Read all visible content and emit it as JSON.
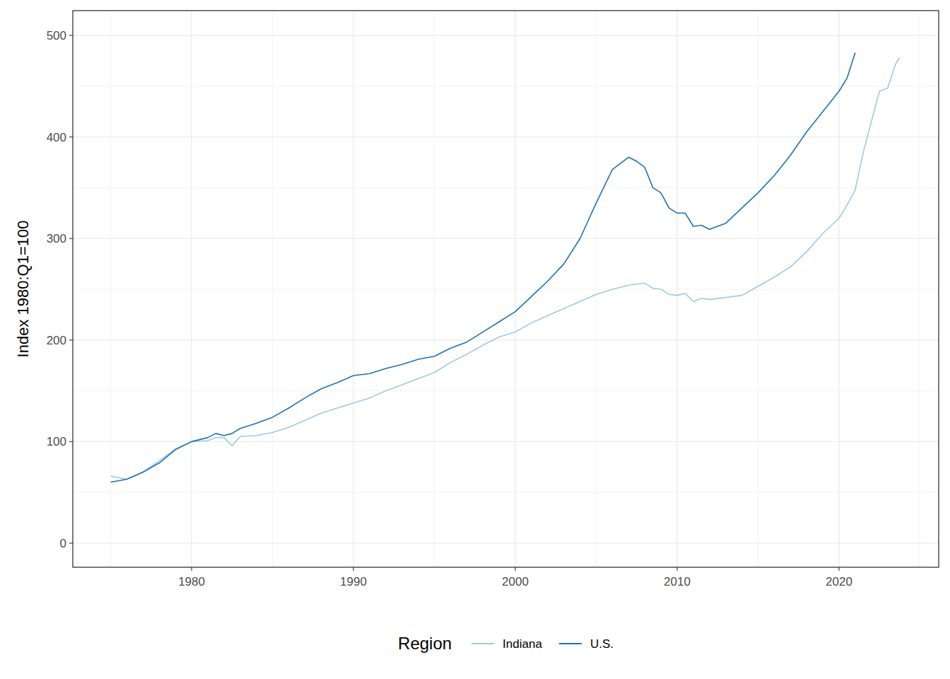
{
  "chart_data": {
    "type": "line",
    "y_label": "Index 1980:Q1=100",
    "legend_title": "Region",
    "legend": "bottom",
    "grid": true,
    "xlim": [
      1972.66,
      2026.16
    ],
    "ylim": [
      -23.7,
      524.4
    ],
    "xticks": [
      1980,
      1990,
      2000,
      2010,
      2020
    ],
    "yticks": [
      0,
      100,
      200,
      300,
      400,
      500
    ],
    "x": [
      1975,
      1976,
      1977,
      1978,
      1979,
      1980,
      1981,
      1981.5,
      1982,
      1982.5,
      1983,
      1984,
      1985,
      1986,
      1987,
      1988,
      1989,
      1990,
      1991,
      1992,
      1993,
      1994,
      1995,
      1996,
      1997,
      1998,
      1999,
      2000,
      2001,
      2002,
      2003,
      2004,
      2005,
      2006,
      2007,
      2007.5,
      2008,
      2008.5,
      2009,
      2009.5,
      2010,
      2010.5,
      2011,
      2011.5,
      2012,
      2013,
      2014,
      2015,
      2016,
      2017,
      2018,
      2019,
      2020,
      2020.5,
      2021,
      2021.5,
      2022,
      2022.5,
      2023,
      2023.5,
      2023.75
    ],
    "series": [
      {
        "name": "Indiana",
        "color": "#9ecae1",
        "values": [
          66,
          63,
          70,
          81,
          93,
          100,
          101,
          104,
          104,
          96,
          105,
          106,
          109,
          114,
          121,
          128,
          133,
          138,
          143,
          150,
          156,
          162,
          168,
          178,
          186,
          195,
          203,
          208,
          217,
          224,
          231,
          238,
          245,
          250,
          254,
          255,
          256,
          251,
          250,
          245,
          244,
          246,
          238,
          241,
          240,
          242,
          244,
          253,
          262,
          272,
          287,
          305,
          320,
          333,
          348,
          385,
          415,
          445,
          448,
          472,
          478
        ]
      },
      {
        "name": "U.S.",
        "color": "#2171b5",
        "values": [
          60,
          63,
          70,
          79,
          92,
          100,
          104,
          108,
          106,
          108,
          113,
          118,
          124,
          133,
          143,
          152,
          158,
          165,
          167,
          172,
          176,
          181,
          184,
          192,
          198,
          208,
          218,
          228,
          243,
          258,
          275,
          300,
          335,
          368,
          380,
          376,
          370,
          350,
          345,
          330,
          325,
          325,
          312,
          313,
          309,
          315,
          330,
          345,
          362,
          382,
          405,
          425,
          445,
          458,
          483,
          null,
          null,
          null,
          null,
          null,
          null
        ]
      }
    ]
  }
}
